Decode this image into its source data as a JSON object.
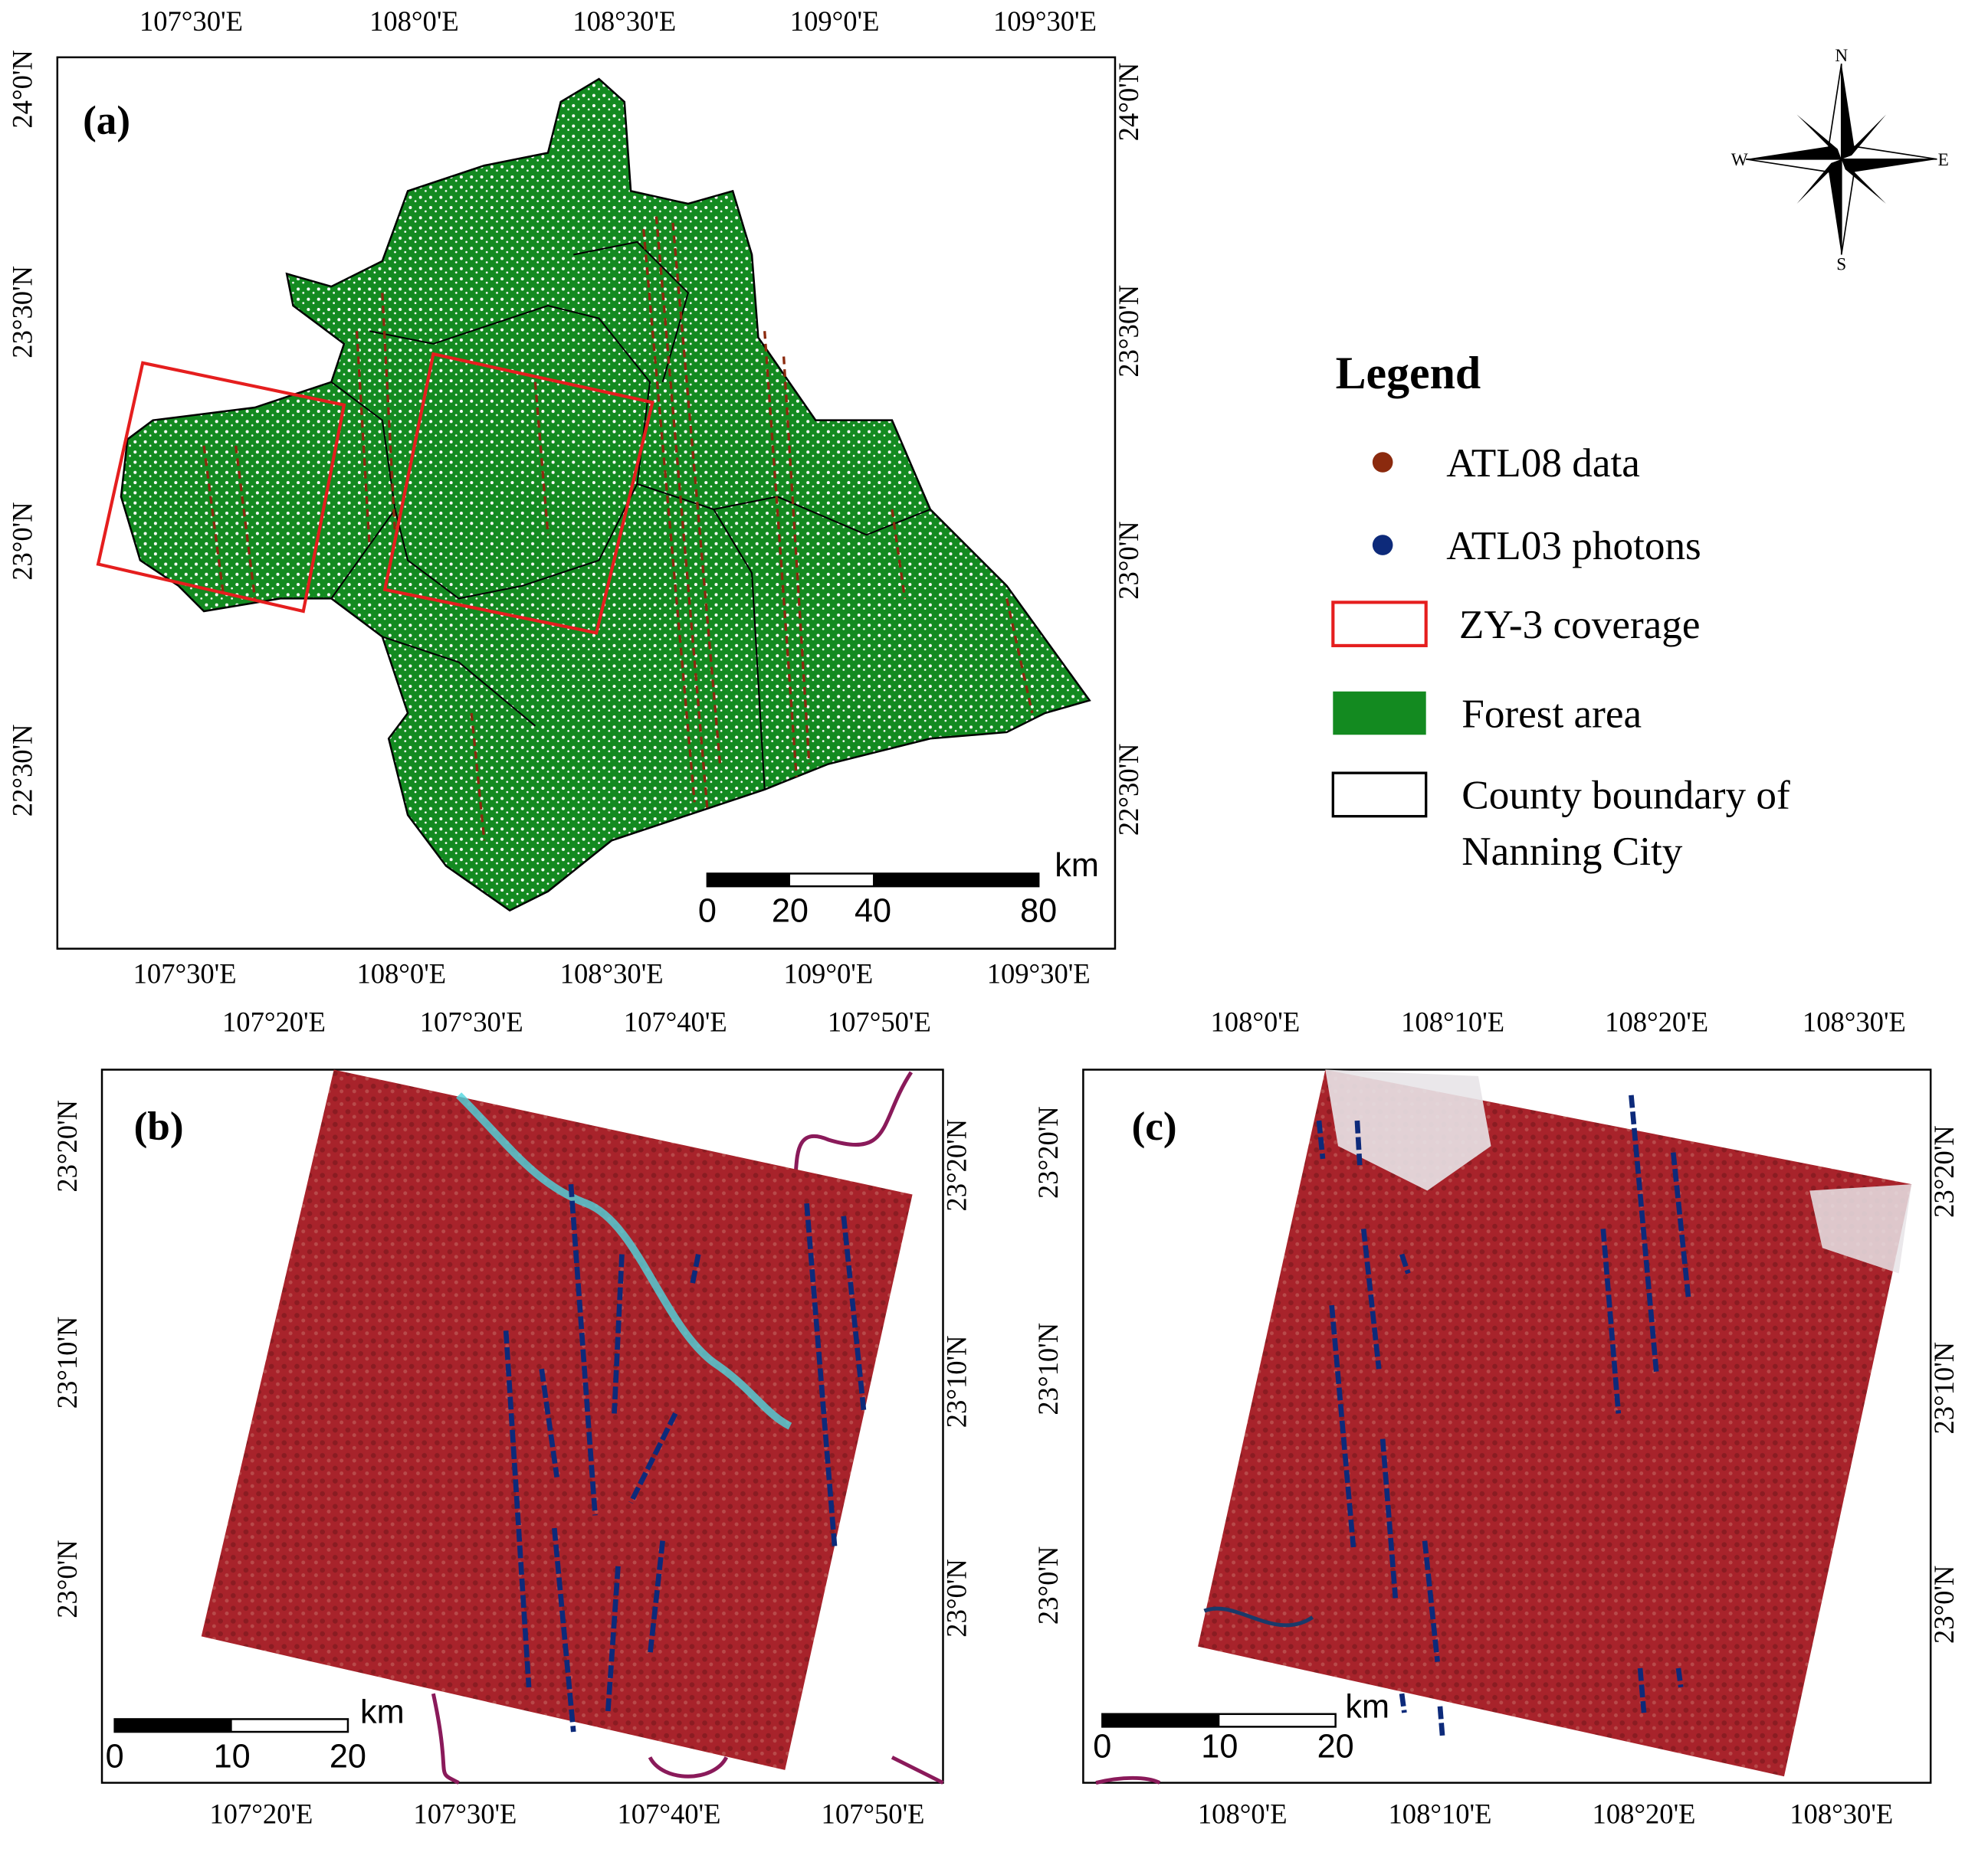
{
  "panels": [
    {
      "label": "(a)",
      "top_ticks": [
        "107°30'E",
        "108°0'E",
        "108°30'E",
        "109°0'E",
        "109°30'E"
      ],
      "bottom_ticks": [
        "107°30'E",
        "108°0'E",
        "108°30'E",
        "109°0'E",
        "109°30'E"
      ],
      "left_ticks": [
        "24°0'N",
        "23°30'N",
        "23°0'N",
        "22°30'N"
      ],
      "right_ticks": [
        "24°0'N",
        "23°30'N",
        "23°0'N",
        "22°30'N"
      ],
      "scale_bar": {
        "unit": "km",
        "labels": [
          "0",
          "20",
          "40",
          "80"
        ]
      }
    },
    {
      "label": "(b)",
      "top_ticks": [
        "107°20'E",
        "107°30'E",
        "107°40'E",
        "107°50'E"
      ],
      "bottom_ticks": [
        "107°20'E",
        "107°30'E",
        "107°40'E",
        "107°50'E"
      ],
      "left_ticks": [
        "23°20'N",
        "23°10'N",
        "23°0'N"
      ],
      "right_ticks": [
        "23°20'N",
        "23°10'N",
        "23°0'N"
      ],
      "scale_bar": {
        "unit": "km",
        "labels": [
          "0",
          "10",
          "20"
        ]
      }
    },
    {
      "label": "(c)",
      "top_ticks": [
        "108°0'E",
        "108°10'E",
        "108°20'E",
        "108°30'E"
      ],
      "bottom_ticks": [
        "108°0'E",
        "108°10'E",
        "108°20'E",
        "108°30'E"
      ],
      "left_ticks": [
        "23°20'N",
        "23°10'N",
        "23°0'N"
      ],
      "right_ticks": [
        "23°20'N",
        "23°10'N",
        "23°0'N"
      ],
      "scale_bar": {
        "unit": "km",
        "labels": [
          "0",
          "10",
          "20"
        ]
      }
    }
  ],
  "compass": {
    "north": "N",
    "east": "E",
    "south": "S",
    "west": "W"
  },
  "legend": {
    "title": "Legend",
    "items": [
      {
        "lines": [
          "ATL08 data"
        ]
      },
      {
        "lines": [
          "ATL03 photons"
        ]
      },
      {
        "lines": [
          "ZY-3 coverage"
        ]
      },
      {
        "lines": [
          "Forest area"
        ]
      },
      {
        "lines": [
          "County boundary of",
          "Nanning City"
        ]
      }
    ]
  }
}
